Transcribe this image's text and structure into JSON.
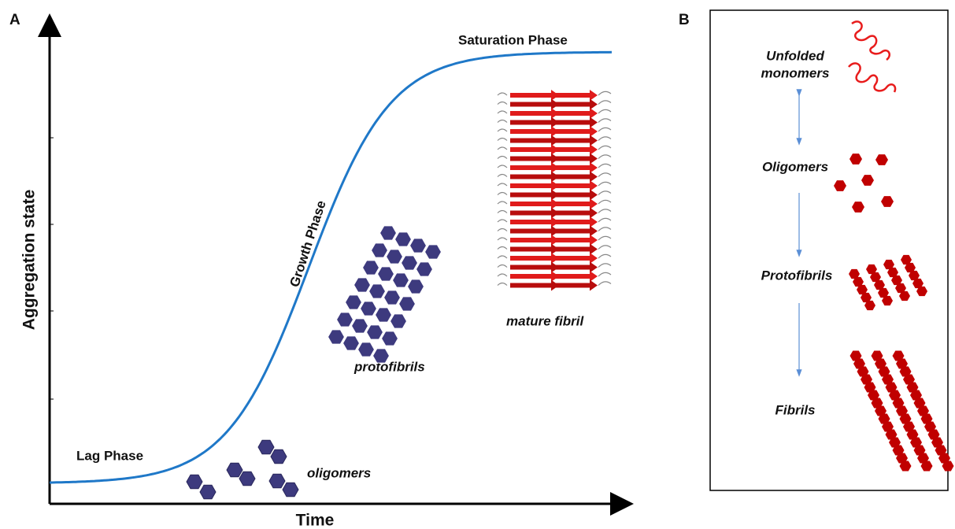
{
  "panel_a": {
    "letter": "A",
    "y_axis_label": "Aggregation state",
    "x_axis_label": "Time",
    "phases": {
      "lag": "Lag Phase",
      "growth": "Growth Phase",
      "saturation": "Saturation Phase"
    },
    "species": {
      "oligomers": "oligomers",
      "protofibrils": "protofibrils",
      "mature_fibril": "mature fibril"
    }
  },
  "panel_b": {
    "letter": "B",
    "stages": [
      {
        "lines": [
          "Unfolded",
          "monomers"
        ]
      },
      {
        "lines": [
          "Oligomers"
        ]
      },
      {
        "lines": [
          "Protofibrils"
        ]
      },
      {
        "lines": [
          "Fibrils"
        ]
      }
    ]
  }
}
